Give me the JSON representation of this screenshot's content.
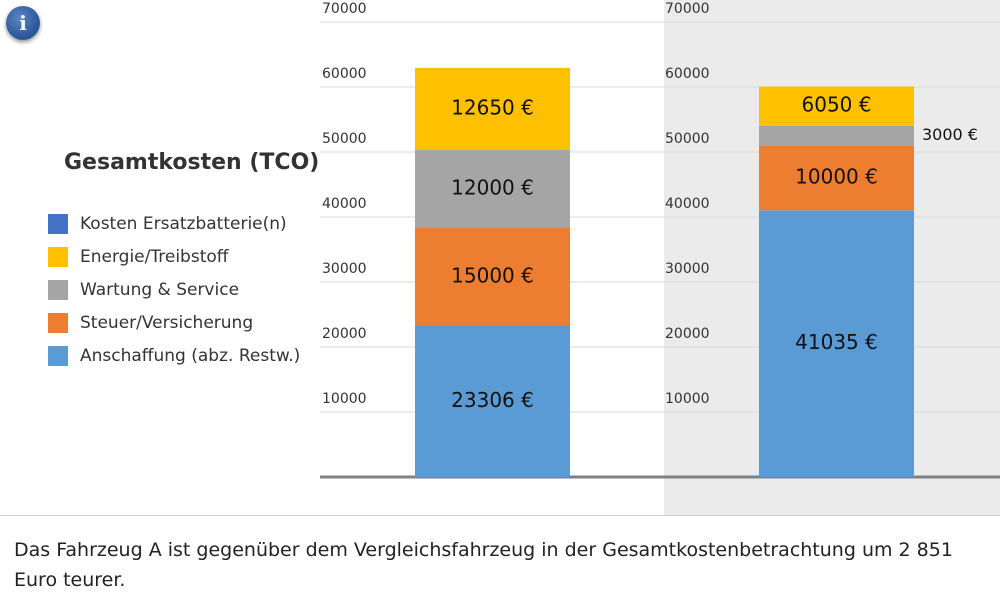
{
  "info_icon": {
    "name": "info-icon",
    "label": "i",
    "color": "#2f5a9c"
  },
  "legend": {
    "title": "Gesamtkosten (TCO)",
    "items": [
      {
        "label": "Kosten Ersatzbatterie(n)",
        "color": "#4472C4"
      },
      {
        "label": "Energie/Treibstoff",
        "color": "#FFC000"
      },
      {
        "label": "Wartung & Service",
        "color": "#A5A5A5"
      },
      {
        "label": "Steuer/Versicherung",
        "color": "#ED7D31"
      },
      {
        "label": "Anschaffung (abz. Restw.)",
        "color": "#5B9BD5"
      }
    ]
  },
  "chart_data": {
    "type": "bar",
    "stacked": true,
    "ylim": [
      0,
      70000
    ],
    "yticks": [
      "10000",
      "20000",
      "30000",
      "40000",
      "50000",
      "60000",
      "70000"
    ],
    "grid": true,
    "bars": [
      {
        "segments": [
          {
            "series": "Anschaffung (abz. Restw.)",
            "value": 23306,
            "label": "23306 €",
            "color": "#5B9BD5",
            "label_position": "inside"
          },
          {
            "series": "Steuer/Versicherung",
            "value": 15000,
            "label": "15000 €",
            "color": "#ED7D31",
            "label_position": "inside"
          },
          {
            "series": "Wartung & Service",
            "value": 12000,
            "label": "12000 €",
            "color": "#A5A5A5",
            "label_position": "inside"
          },
          {
            "series": "Energie/Treibstoff",
            "value": 12650,
            "label": "12650 €",
            "color": "#FFC000",
            "label_position": "inside"
          }
        ]
      },
      {
        "segments": [
          {
            "series": "Anschaffung (abz. Restw.)",
            "value": 41035,
            "label": "41035 €",
            "color": "#5B9BD5",
            "label_position": "inside"
          },
          {
            "series": "Steuer/Versicherung",
            "value": 10000,
            "label": "10000 €",
            "color": "#ED7D31",
            "label_position": "inside"
          },
          {
            "series": "Wartung & Service",
            "value": 3000,
            "label": "3000 €",
            "color": "#A5A5A5",
            "label_position": "outside"
          },
          {
            "series": "Energie/Treibstoff",
            "value": 6050,
            "label": "6050 €",
            "color": "#FFC000",
            "label_position": "inside"
          }
        ]
      }
    ]
  },
  "summary": "Das Fahrzeug A ist gegenüber dem Vergleichsfahrzeug in der Gesamtkostenbetrachtung um 2 851 Euro teurer."
}
